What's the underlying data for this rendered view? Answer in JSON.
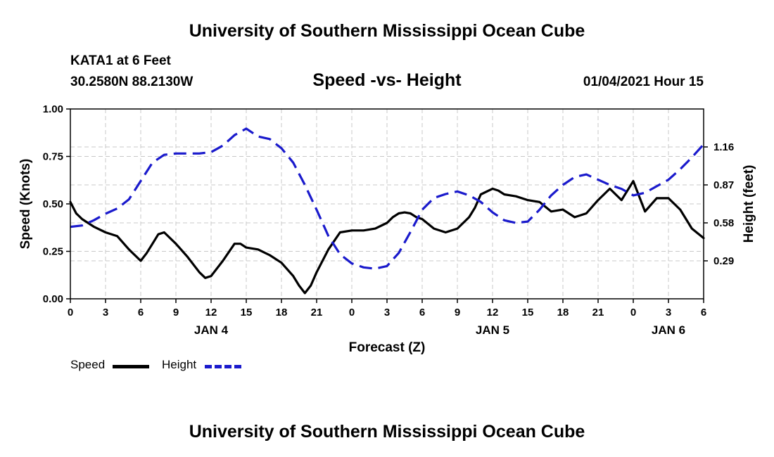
{
  "header": {
    "title": "University of Southern Mississippi Ocean Cube",
    "station_name": "KATA1 at 6 Feet",
    "station_coords": "30.2580N 88.2130W",
    "chart_title": "Speed -vs- Height",
    "issue_time": "01/04/2021 Hour 15"
  },
  "footer": {
    "title": "University of Southern Mississippi Ocean Cube"
  },
  "legend": {
    "speed_label": "Speed",
    "height_label": "Height"
  },
  "colors": {
    "speed": "#000000",
    "height": "#1a1acc",
    "grid": "#c8c8c8"
  },
  "chart_data": {
    "type": "line",
    "title": "Speed -vs- Height",
    "xlabel": "Forecast (Z)",
    "ylabel_left": "Speed (Knots)",
    "ylabel_right": "Height (feet)",
    "x_unit": "hours since JAN 4 00Z",
    "xlim": [
      0,
      54
    ],
    "x_ticks": [
      {
        "x": 0,
        "label": "0"
      },
      {
        "x": 3,
        "label": "3"
      },
      {
        "x": 6,
        "label": "6"
      },
      {
        "x": 9,
        "label": "9"
      },
      {
        "x": 12,
        "label": "12"
      },
      {
        "x": 15,
        "label": "15"
      },
      {
        "x": 18,
        "label": "18"
      },
      {
        "x": 21,
        "label": "21"
      },
      {
        "x": 24,
        "label": "0"
      },
      {
        "x": 27,
        "label": "3"
      },
      {
        "x": 30,
        "label": "6"
      },
      {
        "x": 33,
        "label": "9"
      },
      {
        "x": 36,
        "label": "12"
      },
      {
        "x": 39,
        "label": "15"
      },
      {
        "x": 42,
        "label": "18"
      },
      {
        "x": 45,
        "label": "21"
      },
      {
        "x": 48,
        "label": "0"
      },
      {
        "x": 51,
        "label": "3"
      },
      {
        "x": 54,
        "label": "6"
      }
    ],
    "day_labels": [
      {
        "x": 12,
        "label": "JAN 4"
      },
      {
        "x": 36,
        "label": "JAN 5"
      },
      {
        "x": 51,
        "label": "JAN 6"
      }
    ],
    "ylim_left": [
      0,
      1
    ],
    "y_ticks_left": [
      "0.00",
      "0.25",
      "0.50",
      "0.75",
      "1.00"
    ],
    "ylim_right": [
      0.0,
      1.45
    ],
    "y_ticks_right": [
      {
        "value": 0.29,
        "label": "0.29"
      },
      {
        "value": 0.58,
        "label": "0.58"
      },
      {
        "value": 0.87,
        "label": "0.87"
      },
      {
        "value": 1.16,
        "label": "1.16"
      }
    ],
    "series": [
      {
        "name": "Speed",
        "axis": "left",
        "style": "solid",
        "x": [
          0,
          0.5,
          1,
          2,
          3,
          4,
          5,
          6,
          6.5,
          7,
          7.5,
          8,
          8.5,
          9,
          10,
          11,
          11.5,
          12,
          13,
          14,
          14.5,
          15,
          16,
          17,
          18,
          19,
          19.5,
          20,
          20.5,
          21,
          22,
          23,
          24,
          25,
          26,
          27,
          27.5,
          28,
          28.5,
          29,
          29.5,
          30,
          31,
          32,
          33,
          34,
          34.5,
          35,
          36,
          36.5,
          37,
          38,
          39,
          40,
          41,
          42,
          43,
          44,
          45,
          46,
          47,
          48,
          49,
          50,
          51,
          52,
          53,
          54
        ],
        "values": [
          0.51,
          0.45,
          0.42,
          0.38,
          0.35,
          0.33,
          0.26,
          0.2,
          0.24,
          0.29,
          0.34,
          0.35,
          0.32,
          0.29,
          0.22,
          0.14,
          0.11,
          0.12,
          0.2,
          0.29,
          0.29,
          0.27,
          0.26,
          0.23,
          0.19,
          0.12,
          0.07,
          0.03,
          0.07,
          0.14,
          0.26,
          0.35,
          0.36,
          0.36,
          0.37,
          0.4,
          0.43,
          0.45,
          0.455,
          0.45,
          0.43,
          0.42,
          0.37,
          0.35,
          0.37,
          0.43,
          0.48,
          0.55,
          0.58,
          0.57,
          0.55,
          0.54,
          0.52,
          0.51,
          0.46,
          0.47,
          0.43,
          0.45,
          0.52,
          0.58,
          0.52,
          0.62,
          0.46,
          0.53,
          0.53,
          0.47,
          0.37,
          0.32
        ]
      },
      {
        "name": "Height",
        "axis": "right",
        "style": "dashed",
        "x": [
          0,
          1,
          2,
          3,
          4,
          5,
          6,
          7,
          8,
          9,
          10,
          11,
          12,
          13,
          14,
          15,
          16,
          17,
          18,
          19,
          20,
          21,
          22,
          23,
          24,
          25,
          26,
          27,
          28,
          29,
          30,
          31,
          32,
          33,
          34,
          35,
          36,
          37,
          38,
          39,
          40,
          41,
          42,
          43,
          44,
          45,
          46,
          47,
          48,
          49,
          50,
          51,
          52,
          53,
          54
        ],
        "values": [
          0.55,
          0.56,
          0.6,
          0.65,
          0.69,
          0.76,
          0.9,
          1.04,
          1.1,
          1.11,
          1.11,
          1.11,
          1.12,
          1.17,
          1.25,
          1.3,
          1.24,
          1.22,
          1.15,
          1.04,
          0.87,
          0.68,
          0.48,
          0.34,
          0.27,
          0.24,
          0.23,
          0.25,
          0.35,
          0.51,
          0.68,
          0.77,
          0.8,
          0.82,
          0.79,
          0.74,
          0.66,
          0.6,
          0.58,
          0.59,
          0.68,
          0.79,
          0.87,
          0.93,
          0.95,
          0.91,
          0.87,
          0.84,
          0.79,
          0.81,
          0.86,
          0.91,
          0.99,
          1.08,
          1.18
        ]
      }
    ]
  }
}
